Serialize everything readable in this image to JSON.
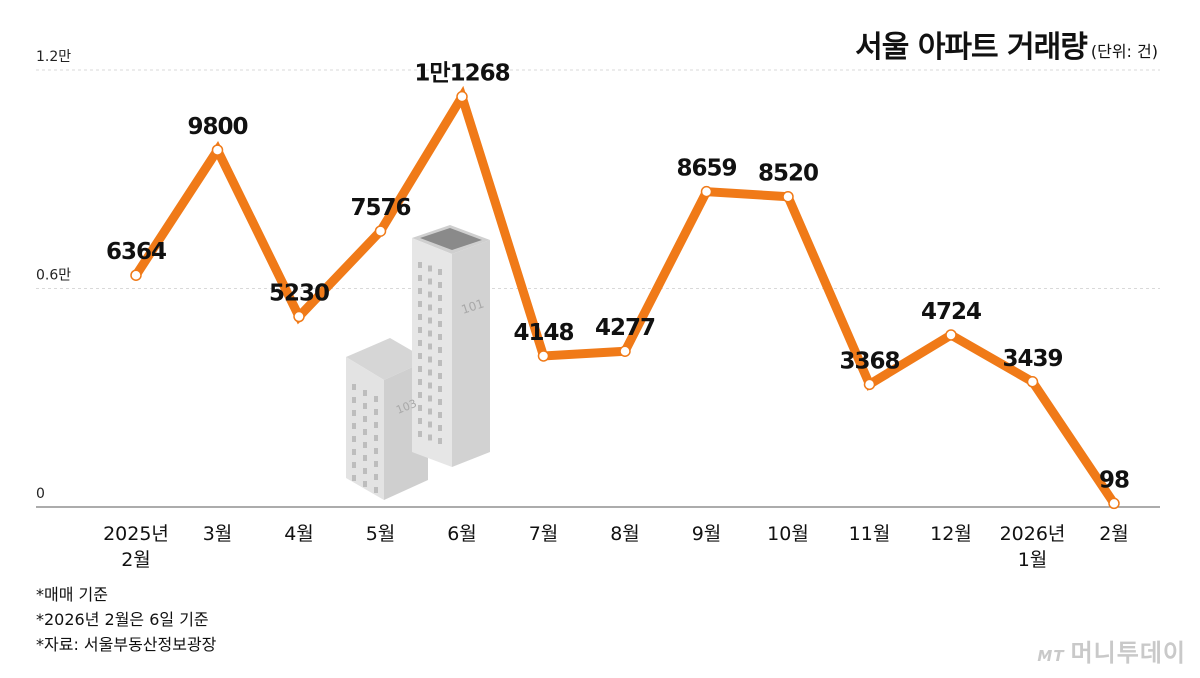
{
  "title": "서울 아파트 거래량",
  "unit_note": "(단위: 건)",
  "footnotes": [
    "*매매 기준",
    "*2026년 2월은 6일 기준",
    "*자료: 서울부동산정보광장"
  ],
  "logo": {
    "mark": "MT",
    "text": "머니투데이"
  },
  "colors": {
    "line": "#F07A18",
    "grid": "#d9d9d9",
    "axis": "#7a7a7a",
    "point_fill": "#ffffff"
  },
  "illustration": {
    "building_tall_label": "101",
    "building_short_label": "103"
  },
  "chart_data": {
    "type": "line",
    "title": "서울 아파트 거래량",
    "categories": [
      [
        "2025년",
        "2월"
      ],
      [
        "3월"
      ],
      [
        "4월"
      ],
      [
        "5월"
      ],
      [
        "6월"
      ],
      [
        "7월"
      ],
      [
        "8월"
      ],
      [
        "9월"
      ],
      [
        "10월"
      ],
      [
        "11월"
      ],
      [
        "12월"
      ],
      [
        "2026년",
        "1월"
      ],
      [
        "2월"
      ]
    ],
    "values": [
      6364,
      9800,
      5230,
      7576,
      11268,
      4148,
      4277,
      8659,
      8520,
      3368,
      4724,
      3439,
      98
    ],
    "value_labels": [
      "6364",
      "9800",
      "5230",
      "7576",
      "1만1268",
      "4148",
      "4277",
      "8659",
      "8520",
      "3368",
      "4724",
      "3439",
      "98"
    ],
    "ylim": [
      0,
      12000
    ],
    "yticks": [
      0,
      6000,
      12000
    ],
    "ytick_labels": [
      "0",
      "0.6만",
      "1.2만"
    ],
    "grid": true
  }
}
